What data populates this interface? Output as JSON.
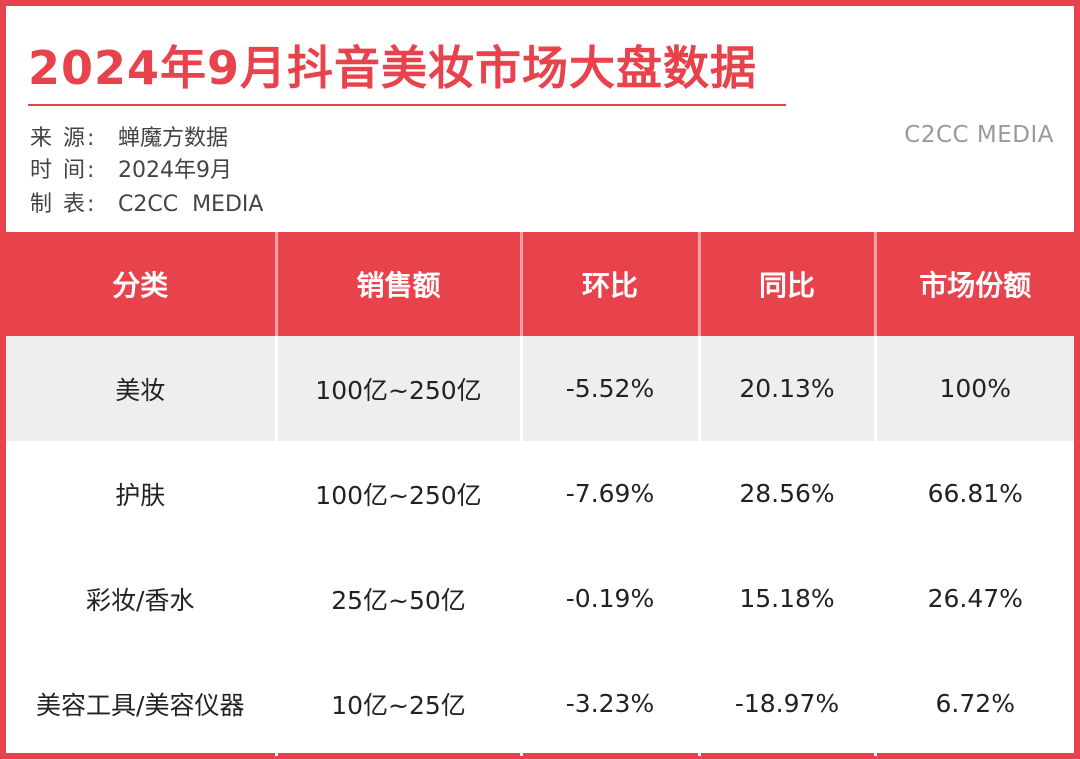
{
  "header": {
    "title": "2024年9月抖音美妆市场大盘数据",
    "brand_watermark": "C2CC MEDIA",
    "meta": [
      {
        "key": "来 源:",
        "value": "蝉魔方数据"
      },
      {
        "key": "时 间:",
        "value": "2024年9月"
      },
      {
        "key": "制 表:",
        "value": "C2CC  MEDIA"
      }
    ]
  },
  "table": {
    "columns": [
      "分类",
      "销售额",
      "环比",
      "同比",
      "市场份额"
    ],
    "rows": [
      {
        "category": "美妆",
        "sales": "100亿~250亿",
        "mom": "-5.52%",
        "yoy": "20.13%",
        "share": "100%"
      },
      {
        "category": "护肤",
        "sales": "100亿~250亿",
        "mom": "-7.69%",
        "yoy": "28.56%",
        "share": "66.81%"
      },
      {
        "category": "彩妆/香水",
        "sales": "25亿~50亿",
        "mom": "-0.19%",
        "yoy": "15.18%",
        "share": "26.47%"
      },
      {
        "category": "美容工具/美容仪器",
        "sales": "10亿~25亿",
        "mom": "-3.23%",
        "yoy": "-18.97%",
        "share": "6.72%"
      }
    ]
  },
  "colors": {
    "accent_red": "#e8434c",
    "negative_green": "#3e9e6a",
    "row_shade": "#eeeeee",
    "text_dark": "#222222",
    "watermark_gray": "#9a9a9a"
  }
}
